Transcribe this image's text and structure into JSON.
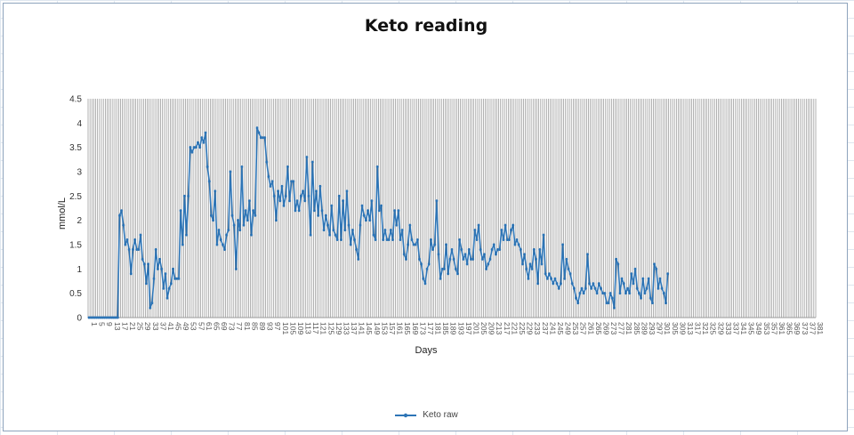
{
  "chart_data": {
    "type": "line",
    "title": "Keto reading",
    "xlabel": "Days",
    "ylabel": "mmol/L",
    "x_range": [
      1,
      381
    ],
    "ylim": [
      0,
      4.5
    ],
    "y_ticks": [
      "0",
      "0.5",
      "1",
      "1.5",
      "2",
      "2.5",
      "3",
      "3.5",
      "4",
      "4.5"
    ],
    "x_tick_step": 4,
    "grid": "vertical lines at every category",
    "legend_position": "bottom",
    "series": [
      {
        "name": "Keto raw",
        "color": "#2e75b6",
        "values": [
          0,
          0,
          0,
          0,
          0,
          0,
          0,
          0,
          0,
          0,
          0,
          0,
          0,
          0,
          0,
          0,
          2.1,
          2.2,
          1.9,
          1.5,
          1.6,
          1.4,
          0.9,
          1.4,
          1.6,
          1.4,
          1.4,
          1.7,
          1.2,
          1.1,
          0.7,
          1.1,
          0.2,
          0.3,
          0.8,
          1.4,
          1.0,
          1.2,
          1.0,
          0.6,
          0.9,
          0.4,
          0.6,
          0.7,
          1.0,
          0.8,
          0.8,
          0.8,
          2.2,
          1.5,
          2.5,
          1.7,
          2.5,
          3.5,
          3.4,
          3.5,
          3.5,
          3.6,
          3.5,
          3.7,
          3.6,
          3.8,
          3.1,
          2.8,
          2.1,
          2.0,
          2.6,
          1.5,
          1.8,
          1.6,
          1.5,
          1.4,
          1.7,
          1.8,
          3.0,
          2.1,
          1.9,
          1.0,
          2.0,
          1.8,
          3.1,
          1.9,
          2.2,
          2.0,
          2.4,
          1.7,
          2.2,
          2.1,
          3.9,
          3.8,
          3.7,
          3.7,
          3.7,
          3.2,
          2.9,
          2.7,
          2.8,
          2.5,
          2.0,
          2.6,
          2.4,
          2.7,
          2.3,
          2.5,
          3.1,
          2.4,
          2.8,
          2.8,
          2.2,
          2.4,
          2.2,
          2.5,
          2.6,
          2.4,
          3.3,
          2.5,
          1.7,
          3.2,
          2.2,
          2.6,
          2.1,
          2.7,
          2.2,
          1.8,
          2.1,
          1.9,
          1.7,
          2.3,
          1.8,
          1.7,
          1.6,
          2.5,
          1.6,
          2.4,
          1.8,
          2.6,
          1.9,
          1.5,
          1.8,
          1.6,
          1.4,
          1.2,
          1.9,
          2.3,
          2.1,
          2.0,
          2.2,
          2.0,
          2.4,
          1.7,
          1.6,
          3.1,
          2.2,
          2.3,
          1.6,
          1.8,
          1.6,
          1.6,
          1.8,
          1.6,
          2.2,
          1.9,
          2.2,
          1.6,
          1.8,
          1.3,
          1.2,
          1.5,
          1.9,
          1.6,
          1.5,
          1.5,
          1.6,
          1.2,
          1.1,
          0.8,
          0.7,
          1.0,
          1.1,
          1.6,
          1.4,
          1.5,
          2.4,
          1.3,
          0.8,
          1.0,
          1.0,
          1.5,
          0.9,
          1.2,
          1.4,
          1.2,
          1.0,
          0.9,
          1.6,
          1.4,
          1.2,
          1.3,
          1.1,
          1.4,
          1.2,
          1.2,
          1.8,
          1.6,
          1.9,
          1.4,
          1.2,
          1.3,
          1.0,
          1.1,
          1.2,
          1.4,
          1.5,
          1.3,
          1.4,
          1.4,
          1.8,
          1.6,
          1.9,
          1.6,
          1.6,
          1.8,
          1.9,
          1.5,
          1.6,
          1.5,
          1.4,
          1.1,
          1.3,
          1.0,
          0.8,
          1.1,
          1.0,
          1.4,
          1.2,
          0.7,
          1.4,
          1.1,
          1.7,
          0.9,
          0.8,
          0.9,
          0.8,
          0.7,
          0.8,
          0.7,
          0.6,
          0.7,
          1.5,
          0.8,
          1.2,
          1.0,
          0.9,
          0.7,
          0.6,
          0.4,
          0.3,
          0.5,
          0.6,
          0.5,
          0.6,
          1.3,
          0.7,
          0.6,
          0.7,
          0.6,
          0.5,
          0.7,
          0.6,
          0.5,
          0.5,
          0.3,
          0.3,
          0.5,
          0.4,
          0.2,
          1.2,
          1.1,
          0.5,
          0.8,
          0.7,
          0.5,
          0.6,
          0.5,
          0.9,
          0.7,
          1.0,
          0.6,
          0.5,
          0.4,
          0.8,
          0.5,
          0.6,
          0.8,
          0.4,
          0.3,
          1.1,
          1.0,
          0.6,
          0.8,
          0.6,
          0.5,
          0.3,
          0.9
        ]
      }
    ]
  }
}
